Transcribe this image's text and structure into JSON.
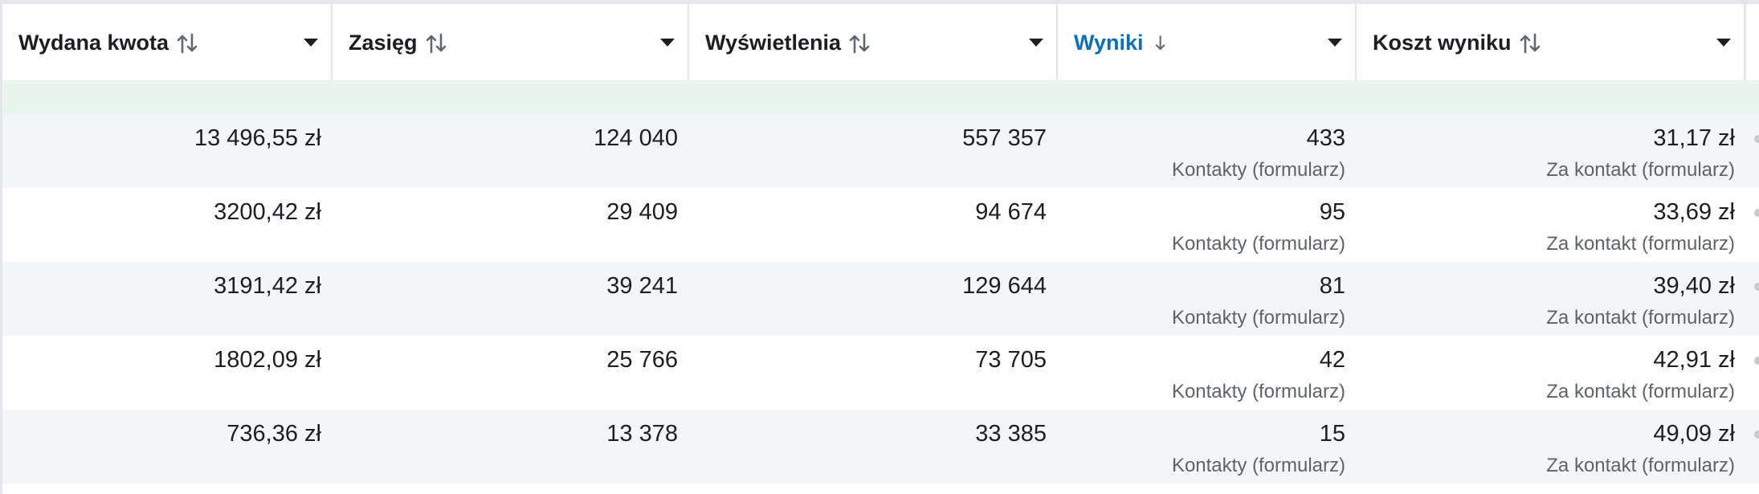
{
  "columns": [
    {
      "label": "Wydana kwota",
      "sort": "both",
      "active": false
    },
    {
      "label": "Zasięg",
      "sort": "both",
      "active": false
    },
    {
      "label": "Wyświetlenia",
      "sort": "both",
      "active": false
    },
    {
      "label": "Wyniki",
      "sort": "down",
      "active": true
    },
    {
      "label": "Koszt wyniku",
      "sort": "both",
      "active": false
    }
  ],
  "rows": [
    {
      "spent": "13 496,55 zł",
      "reach": "124 040",
      "impressions": "557 357",
      "results": "433",
      "results_type": "Kontakty (formularz)",
      "cost": "31,17 zł",
      "cost_type": "Za kontakt (formularz)"
    },
    {
      "spent": "3200,42 zł",
      "reach": "29 409",
      "impressions": "94 674",
      "results": "95",
      "results_type": "Kontakty (formularz)",
      "cost": "33,69 zł",
      "cost_type": "Za kontakt (formularz)"
    },
    {
      "spent": "3191,42 zł",
      "reach": "39 241",
      "impressions": "129 644",
      "results": "81",
      "results_type": "Kontakty (formularz)",
      "cost": "39,40 zł",
      "cost_type": "Za kontakt (formularz)"
    },
    {
      "spent": "1802,09 zł",
      "reach": "25 766",
      "impressions": "73 705",
      "results": "42",
      "results_type": "Kontakty (formularz)",
      "cost": "42,91 zł",
      "cost_type": "Za kontakt (formularz)"
    },
    {
      "spent": "736,36 zł",
      "reach": "13 378",
      "impressions": "33 385",
      "results": "15",
      "results_type": "Kontakty (formularz)",
      "cost": "49,09 zł",
      "cost_type": "Za kontakt (formularz)"
    }
  ],
  "colors": {
    "active_header": "#0a6fb8",
    "summary_band": "#e8f5ef",
    "row_shade": "#f4f5f7"
  },
  "icons": {
    "sort_both": "sort-arrows-icon",
    "sort_down": "arrow-down-icon",
    "menu": "caret-down-icon"
  }
}
